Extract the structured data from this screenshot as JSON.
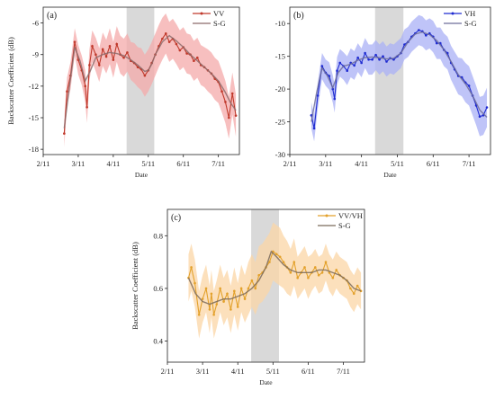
{
  "chart_data": [
    {
      "type": "line",
      "panel_label": "(a)",
      "xlabel": "Date",
      "ylabel": "Backscatter Coefficient (dB)",
      "xlim": [
        0,
        5.6
      ],
      "ylim": [
        -18.5,
        -4.5
      ],
      "x_ticks": [
        0,
        1,
        2,
        3,
        4,
        5
      ],
      "x_tick_labels": [
        "2/11",
        "3/11",
        "4/11",
        "5/11",
        "6/11",
        "7/11"
      ],
      "y_ticks": [
        -18,
        -15,
        -12,
        -9,
        -6
      ],
      "y_tick_labels": [
        "-18",
        "-15",
        "-12",
        "-9",
        "-6"
      ],
      "shaded_region": [
        2.38,
        3.17
      ],
      "shaded_color": "#d9d9d9",
      "legend_position": "top-right",
      "series": [
        {
          "name": "VV",
          "role": "raw",
          "color": "#c0392b",
          "band_color": "#f4a9a9",
          "x": [
            0.6,
            0.68,
            0.78,
            0.9,
            1.0,
            1.1,
            1.2,
            1.25,
            1.32,
            1.4,
            1.5,
            1.6,
            1.7,
            1.8,
            1.9,
            2.0,
            2.1,
            2.2,
            2.3,
            2.4,
            2.5,
            2.6,
            2.7,
            2.8,
            2.9,
            3.0,
            3.1,
            3.2,
            3.3,
            3.4,
            3.5,
            3.6,
            3.7,
            3.8,
            3.9,
            4.0,
            4.1,
            4.2,
            4.3,
            4.4,
            4.5,
            4.6,
            4.7,
            4.8,
            4.9,
            5.0,
            5.1,
            5.2,
            5.3,
            5.4,
            5.5
          ],
          "y": [
            -16.5,
            -12.5,
            -11,
            -7.8,
            -9.5,
            -10.5,
            -12,
            -14,
            -10,
            -8.2,
            -9,
            -10,
            -8.5,
            -9.2,
            -8.2,
            -9.5,
            -8,
            -9,
            -9.3,
            -8.8,
            -9.6,
            -9.8,
            -10.2,
            -10.4,
            -11,
            -10.5,
            -9.8,
            -9,
            -8.2,
            -7.5,
            -7,
            -7.8,
            -7.5,
            -8,
            -8.6,
            -8.3,
            -8.9,
            -9,
            -9.6,
            -9.3,
            -10,
            -10.2,
            -10.5,
            -10.8,
            -11.3,
            -11.6,
            -12.5,
            -13.5,
            -15,
            -12.7,
            -14.8
          ],
          "band": [
            1.3,
            1.3,
            1.3,
            1.3,
            1.4,
            1.4,
            1.5,
            1.5,
            1.5,
            1.5,
            1.6,
            1.6,
            1.6,
            1.6,
            1.7,
            1.7,
            1.7,
            1.8,
            1.8,
            1.8,
            1.8,
            1.9,
            1.9,
            2.0,
            2.0,
            2.0,
            2.0,
            2.0,
            2.0,
            2.0,
            1.9,
            1.9,
            1.9,
            1.9,
            1.9,
            1.9,
            1.9,
            1.9,
            1.9,
            1.9,
            1.9,
            1.9,
            2.0,
            2.0,
            2.0,
            2.0,
            2.0,
            2.0,
            2.0,
            2.0,
            2.0
          ]
        },
        {
          "name": "S-G",
          "role": "smooth",
          "color": "#8c6b6b",
          "x": [
            0.6,
            0.75,
            0.9,
            1.05,
            1.2,
            1.35,
            1.5,
            1.7,
            1.9,
            2.1,
            2.3,
            2.5,
            2.7,
            2.9,
            3.0,
            3.1,
            3.2,
            3.4,
            3.6,
            3.8,
            4.0,
            4.2,
            4.4,
            4.6,
            4.8,
            5.0,
            5.2,
            5.35,
            5.5
          ],
          "y": [
            -16,
            -12,
            -8.3,
            -9.6,
            -11.5,
            -10.5,
            -9.3,
            -9,
            -8.8,
            -8.9,
            -9.1,
            -9.5,
            -10,
            -10.6,
            -10.5,
            -9.9,
            -9,
            -7.8,
            -7.2,
            -7.7,
            -8.3,
            -9,
            -9.6,
            -10.2,
            -10.8,
            -11.5,
            -12.6,
            -13.6,
            -14.3
          ]
        }
      ]
    },
    {
      "type": "line",
      "panel_label": "(b)",
      "xlabel": "Date",
      "ylabel": "",
      "xlim": [
        0,
        5.6
      ],
      "ylim": [
        -30,
        -7.5
      ],
      "x_ticks": [
        0,
        1,
        2,
        3,
        4,
        5
      ],
      "x_tick_labels": [
        "2/11",
        "3/11",
        "4/11",
        "5/11",
        "6/11",
        "7/11"
      ],
      "y_ticks": [
        -30,
        -25,
        -20,
        -15,
        -10
      ],
      "y_tick_labels": [
        "-30",
        "-25",
        "-20",
        "-15",
        "-10"
      ],
      "shaded_region": [
        2.38,
        3.17
      ],
      "shaded_color": "#d9d9d9",
      "legend_position": "top-right",
      "series": [
        {
          "name": "VH",
          "role": "raw",
          "color": "#1f2bd1",
          "band_color": "#aab0f5",
          "x": [
            0.6,
            0.68,
            0.78,
            0.9,
            1.0,
            1.1,
            1.2,
            1.25,
            1.32,
            1.4,
            1.5,
            1.6,
            1.7,
            1.8,
            1.9,
            2.0,
            2.1,
            2.2,
            2.3,
            2.4,
            2.5,
            2.6,
            2.7,
            2.8,
            2.9,
            3.0,
            3.1,
            3.2,
            3.3,
            3.4,
            3.5,
            3.6,
            3.7,
            3.8,
            3.9,
            4.0,
            4.1,
            4.2,
            4.3,
            4.4,
            4.5,
            4.6,
            4.7,
            4.8,
            4.9,
            5.0,
            5.1,
            5.2,
            5.3,
            5.4,
            5.5
          ],
          "y": [
            -24,
            -26,
            -21,
            -16.5,
            -17.5,
            -18,
            -20,
            -21.5,
            -17.2,
            -16,
            -16.5,
            -17.2,
            -16,
            -16.4,
            -15.2,
            -16,
            -14.5,
            -15.5,
            -15.5,
            -14.8,
            -15.5,
            -15,
            -15.8,
            -15.3,
            -15.5,
            -15,
            -14.5,
            -13.2,
            -12.8,
            -12,
            -11.5,
            -11,
            -11.2,
            -11.8,
            -11.5,
            -12,
            -13,
            -13,
            -14,
            -14.5,
            -16,
            -17,
            -18,
            -18.2,
            -19,
            -19.5,
            -21,
            -22.5,
            -24.2,
            -24,
            -22.8
          ],
          "band": [
            2.0,
            2.0,
            2.0,
            2.0,
            2.0,
            2.1,
            2.1,
            2.1,
            2.1,
            2.1,
            2.1,
            2.2,
            2.2,
            2.2,
            2.2,
            2.2,
            2.3,
            2.3,
            2.3,
            2.3,
            2.3,
            2.3,
            2.3,
            2.3,
            2.3,
            2.3,
            2.3,
            2.3,
            2.3,
            2.3,
            2.3,
            2.3,
            2.3,
            2.3,
            2.3,
            2.4,
            2.4,
            2.4,
            2.5,
            2.5,
            2.6,
            2.7,
            2.8,
            2.9,
            3.0,
            3.0,
            3.0,
            3.0,
            3.0,
            3.0,
            3.0
          ]
        },
        {
          "name": "S-G",
          "role": "smooth",
          "color": "#6d6d9a",
          "x": [
            0.6,
            0.75,
            0.9,
            1.05,
            1.2,
            1.35,
            1.5,
            1.7,
            1.9,
            2.1,
            2.3,
            2.5,
            2.7,
            2.9,
            3.1,
            3.3,
            3.5,
            3.7,
            3.9,
            4.1,
            4.3,
            4.5,
            4.7,
            4.9,
            5.1,
            5.3,
            5.5
          ],
          "y": [
            -25,
            -20.5,
            -16.8,
            -18,
            -19.8,
            -17.5,
            -16.5,
            -16.2,
            -15.6,
            -15.2,
            -15.1,
            -15.2,
            -15.4,
            -15.3,
            -14.5,
            -12.8,
            -11.6,
            -11.3,
            -11.7,
            -12.6,
            -14,
            -15.8,
            -17.8,
            -19.2,
            -21,
            -23.2,
            -24.3
          ]
        }
      ]
    },
    {
      "type": "line",
      "panel_label": "(c)",
      "xlabel": "Date",
      "ylabel": "Backscatter Coefficient (dB)",
      "xlim": [
        0,
        5.6
      ],
      "ylim": [
        0.32,
        0.9
      ],
      "x_ticks": [
        0,
        1,
        2,
        3,
        4,
        5
      ],
      "x_tick_labels": [
        "2/11",
        "3/11",
        "4/11",
        "5/11",
        "6/11",
        "7/11"
      ],
      "y_ticks": [
        0.4,
        0.6,
        0.8
      ],
      "y_tick_labels": [
        "0.4",
        "0.6",
        "0.8"
      ],
      "shaded_region": [
        2.38,
        3.17
      ],
      "shaded_color": "#d9d9d9",
      "legend_position": "top-right",
      "series": [
        {
          "name": "VV/VH",
          "role": "raw",
          "color": "#e3a12b",
          "band_color": "#fbd5a6",
          "x": [
            0.6,
            0.68,
            0.78,
            0.9,
            1.0,
            1.1,
            1.2,
            1.25,
            1.32,
            1.4,
            1.5,
            1.6,
            1.7,
            1.8,
            1.9,
            2.0,
            2.1,
            2.2,
            2.3,
            2.4,
            2.5,
            2.6,
            2.7,
            2.8,
            2.9,
            3.0,
            3.1,
            3.2,
            3.3,
            3.4,
            3.5,
            3.6,
            3.7,
            3.8,
            3.9,
            4.0,
            4.1,
            4.2,
            4.3,
            4.4,
            4.5,
            4.6,
            4.7,
            4.8,
            4.9,
            5.0,
            5.1,
            5.2,
            5.3,
            5.4,
            5.5
          ],
          "y": [
            0.64,
            0.68,
            0.62,
            0.5,
            0.56,
            0.6,
            0.52,
            0.58,
            0.5,
            0.54,
            0.6,
            0.55,
            0.58,
            0.52,
            0.59,
            0.53,
            0.6,
            0.56,
            0.6,
            0.63,
            0.6,
            0.65,
            0.66,
            0.68,
            0.7,
            0.74,
            0.73,
            0.72,
            0.7,
            0.68,
            0.66,
            0.7,
            0.64,
            0.66,
            0.68,
            0.64,
            0.66,
            0.68,
            0.65,
            0.66,
            0.7,
            0.66,
            0.64,
            0.67,
            0.65,
            0.64,
            0.63,
            0.6,
            0.58,
            0.61,
            0.59
          ],
          "band": [
            0.09,
            0.09,
            0.09,
            0.09,
            0.09,
            0.09,
            0.09,
            0.09,
            0.09,
            0.09,
            0.09,
            0.09,
            0.09,
            0.09,
            0.09,
            0.09,
            0.09,
            0.09,
            0.1,
            0.1,
            0.1,
            0.11,
            0.11,
            0.11,
            0.11,
            0.11,
            0.11,
            0.11,
            0.1,
            0.1,
            0.09,
            0.09,
            0.08,
            0.08,
            0.08,
            0.08,
            0.07,
            0.07,
            0.07,
            0.07,
            0.07,
            0.07,
            0.07,
            0.07,
            0.07,
            0.07,
            0.07,
            0.07,
            0.07,
            0.07,
            0.07
          ]
        },
        {
          "name": "S-G",
          "role": "smooth",
          "color": "#7a6a5a",
          "x": [
            0.6,
            0.8,
            1.0,
            1.2,
            1.4,
            1.6,
            1.8,
            2.0,
            2.2,
            2.4,
            2.6,
            2.8,
            2.95,
            3.1,
            3.3,
            3.5,
            3.7,
            3.9,
            4.1,
            4.3,
            4.5,
            4.7,
            4.9,
            5.1,
            5.3,
            5.5
          ],
          "y": [
            0.64,
            0.58,
            0.55,
            0.54,
            0.55,
            0.56,
            0.56,
            0.57,
            0.58,
            0.6,
            0.63,
            0.68,
            0.74,
            0.72,
            0.69,
            0.67,
            0.66,
            0.66,
            0.66,
            0.67,
            0.67,
            0.66,
            0.65,
            0.63,
            0.6,
            0.59
          ]
        }
      ]
    }
  ]
}
